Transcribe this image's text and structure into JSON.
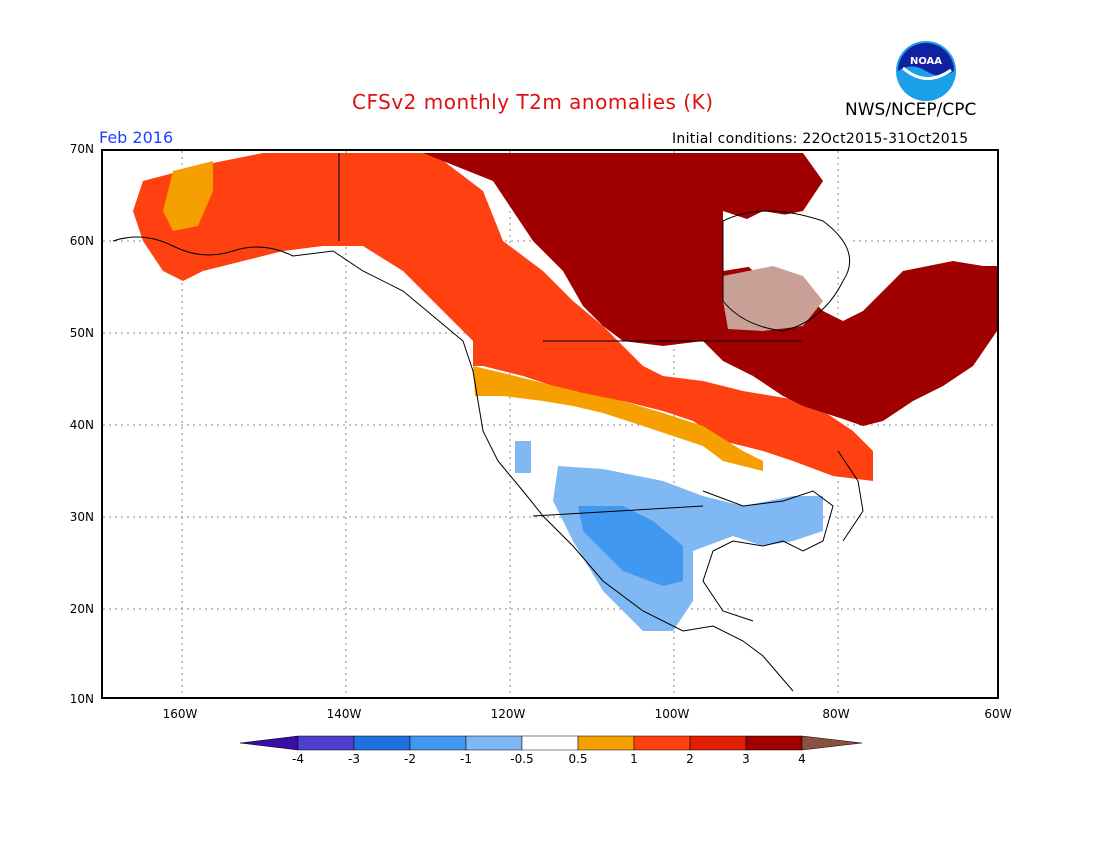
{
  "title": "CFSv2 monthly T2m anomalies (K)",
  "center_label": "NWS/NCEP/CPC",
  "logo_text": "NOAA",
  "valid_month": "Feb 2016",
  "initial_conditions": "Initial conditions: 22Oct2015-31Oct2015",
  "latitude_labels": [
    "70N",
    "60N",
    "50N",
    "40N",
    "30N",
    "20N",
    "10N"
  ],
  "longitude_labels": [
    "160W",
    "140W",
    "120W",
    "100W",
    "80W",
    "60W"
  ],
  "colorbar": {
    "labels": [
      "-4",
      "-3",
      "-2",
      "-1",
      "-0.5",
      "0.5",
      "1",
      "2",
      "3",
      "4"
    ],
    "colors": [
      "#3a0ca8",
      "#4f3fd0",
      "#2070e0",
      "#4098f0",
      "#80b8f4",
      "#ffffff",
      "#f5a000",
      "#ff4010",
      "#e02000",
      "#a00000",
      "#c8a096",
      "#8a5040"
    ]
  }
}
